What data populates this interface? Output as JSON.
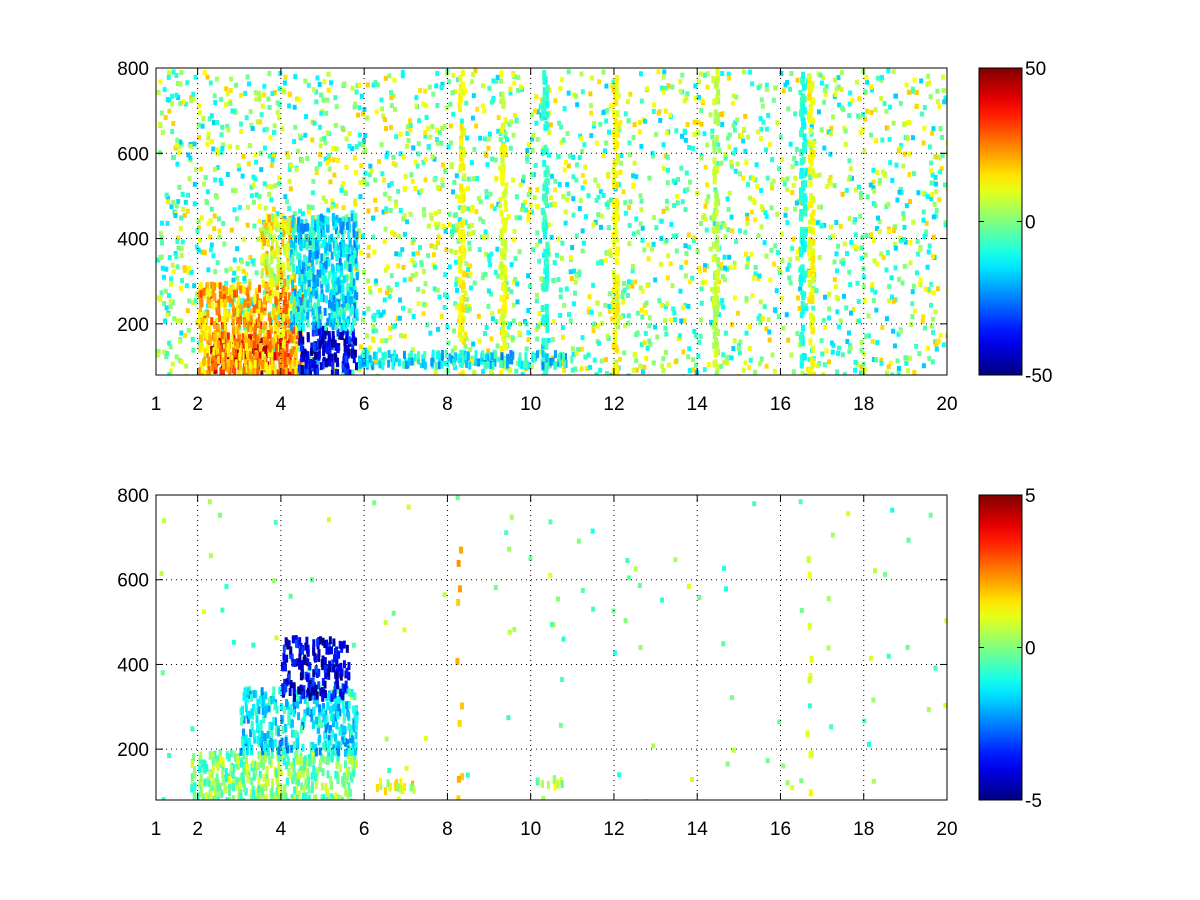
{
  "chart_data": [
    {
      "type": "heatmap",
      "title": "",
      "xlabel": "",
      "ylabel": "",
      "xlim": [
        1,
        20
      ],
      "ylim": [
        80,
        800
      ],
      "xticks": [
        1,
        2,
        4,
        6,
        8,
        10,
        12,
        14,
        16,
        18,
        20
      ],
      "yticks": [
        200,
        400,
        600,
        800
      ],
      "grid": true,
      "colormap": "jet",
      "clim": [
        -50,
        50
      ],
      "colorbar_ticks": [
        -50,
        0,
        50
      ],
      "regions": [
        {
          "x": [
            2.3,
            4.2
          ],
          "y": [
            90,
            180
          ],
          "value": 40
        },
        {
          "x": [
            2.0,
            4.5
          ],
          "y": [
            90,
            300
          ],
          "value": 20
        },
        {
          "x": [
            3.5,
            4.3
          ],
          "y": [
            300,
            460
          ],
          "value": 12
        },
        {
          "x": [
            4.4,
            5.8
          ],
          "y": [
            90,
            200
          ],
          "value": -40
        },
        {
          "x": [
            4.2,
            5.8
          ],
          "y": [
            200,
            460
          ],
          "value": -15
        },
        {
          "x": [
            5.8,
            11
          ],
          "y": [
            110,
            140
          ],
          "value": -15
        }
      ],
      "streaks": [
        {
          "x": 8.3,
          "value": 12
        },
        {
          "x": 9.3,
          "value": 10
        },
        {
          "x": 10.3,
          "value": -8
        },
        {
          "x": 12.0,
          "value": 12
        },
        {
          "x": 14.4,
          "value": 6
        },
        {
          "x": 16.5,
          "value": -10
        },
        {
          "x": 16.7,
          "value": 12
        }
      ]
    },
    {
      "type": "heatmap",
      "title": "",
      "xlabel": "",
      "ylabel": "",
      "xlim": [
        1,
        20
      ],
      "ylim": [
        80,
        800
      ],
      "xticks": [
        1,
        2,
        4,
        6,
        8,
        10,
        12,
        14,
        16,
        18,
        20
      ],
      "yticks": [
        200,
        400,
        600,
        800
      ],
      "grid": true,
      "colormap": "jet",
      "clim": [
        -5,
        5
      ],
      "colorbar_ticks": [
        -5,
        0,
        5
      ],
      "regions": [
        {
          "x": [
            1.8,
            5.8
          ],
          "y": [
            80,
            200
          ],
          "value": 0
        },
        {
          "x": [
            3.0,
            5.8
          ],
          "y": [
            200,
            350
          ],
          "value": -1.5
        },
        {
          "x": [
            4.0,
            5.6
          ],
          "y": [
            330,
            470
          ],
          "value": -4
        },
        {
          "x": [
            6.2,
            7.2
          ],
          "y": [
            110,
            135
          ],
          "value": 1
        },
        {
          "x": [
            10.1,
            10.8
          ],
          "y": [
            120,
            140
          ],
          "value": 0.5
        }
      ],
      "streaks": [
        {
          "x": 8.25,
          "value": 2
        },
        {
          "x": 16.65,
          "value": 1
        }
      ]
    }
  ]
}
